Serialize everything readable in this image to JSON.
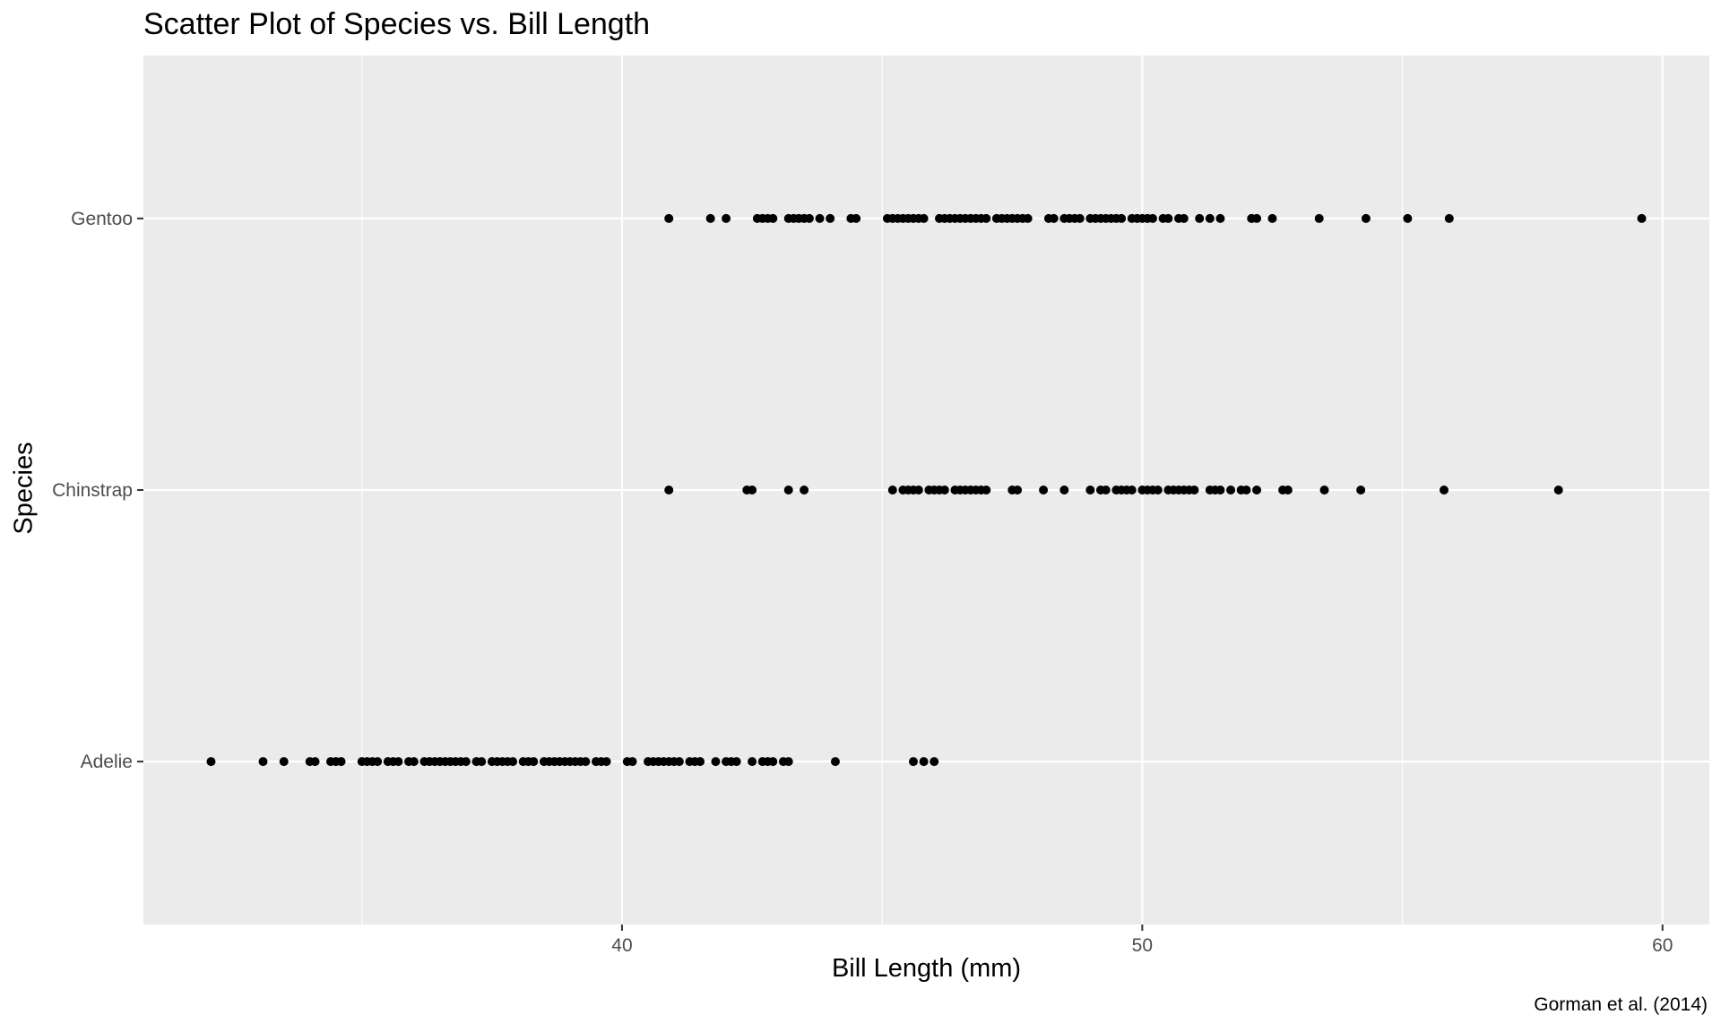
{
  "chart_data": {
    "type": "scatter",
    "title": "Scatter Plot of Species vs. Bill Length",
    "xlabel": "Bill Length (mm)",
    "ylabel": "Species",
    "caption": "Gorman et al. (2014)",
    "x_ticks": [
      40,
      50,
      60
    ],
    "xlim": [
      30.8,
      60.9
    ],
    "categories": [
      "Adelie",
      "Chinstrap",
      "Gentoo"
    ],
    "grid": true,
    "legend": "none",
    "colors": {
      "panel": "#ebebeb",
      "grid": "#ffffff",
      "point": "#000000",
      "tick_text": "#4d4d4d",
      "tick_mark": "#333333"
    },
    "series": [
      {
        "category": "Adelie",
        "x": [
          32.1,
          33.1,
          33.5,
          34.0,
          34.1,
          34.4,
          34.5,
          34.6,
          35.0,
          35.1,
          35.2,
          35.3,
          35.5,
          35.6,
          35.7,
          35.9,
          36.0,
          36.2,
          36.3,
          36.4,
          36.5,
          36.6,
          36.7,
          36.8,
          36.9,
          37.0,
          37.2,
          37.3,
          37.5,
          37.6,
          37.7,
          37.8,
          37.9,
          38.1,
          38.2,
          38.3,
          38.5,
          38.6,
          38.7,
          38.8,
          38.9,
          39.0,
          39.1,
          39.2,
          39.3,
          39.5,
          39.6,
          39.7,
          40.1,
          40.2,
          40.5,
          40.6,
          40.7,
          40.8,
          40.9,
          41.0,
          41.1,
          41.3,
          41.4,
          41.5,
          41.8,
          42.0,
          42.1,
          42.2,
          42.5,
          42.7,
          42.8,
          42.9,
          43.1,
          43.2,
          44.1,
          45.6,
          45.8,
          46.0
        ]
      },
      {
        "category": "Chinstrap",
        "x": [
          40.9,
          42.4,
          42.5,
          43.2,
          43.5,
          45.2,
          45.4,
          45.5,
          45.6,
          45.7,
          45.9,
          46.0,
          46.1,
          46.2,
          46.4,
          46.5,
          46.6,
          46.7,
          46.8,
          46.9,
          47.0,
          47.5,
          47.6,
          48.1,
          48.5,
          49.0,
          49.2,
          49.3,
          49.5,
          49.6,
          49.7,
          49.8,
          50.0,
          50.1,
          50.2,
          50.3,
          50.5,
          50.6,
          50.7,
          50.8,
          50.9,
          51.0,
          51.3,
          51.4,
          51.5,
          51.7,
          51.9,
          52.0,
          52.2,
          52.7,
          52.8,
          53.5,
          54.2,
          55.8,
          58.0
        ]
      },
      {
        "category": "Gentoo",
        "x": [
          40.9,
          41.7,
          42.0,
          42.6,
          42.7,
          42.8,
          42.9,
          43.2,
          43.3,
          43.4,
          43.5,
          43.6,
          43.8,
          44.0,
          44.4,
          44.5,
          45.1,
          45.2,
          45.3,
          45.4,
          45.5,
          45.6,
          45.7,
          45.8,
          46.1,
          46.2,
          46.3,
          46.4,
          46.5,
          46.6,
          46.7,
          46.8,
          46.9,
          47.0,
          47.2,
          47.3,
          47.4,
          47.5,
          47.6,
          47.7,
          47.8,
          48.2,
          48.3,
          48.5,
          48.6,
          48.7,
          48.8,
          49.0,
          49.1,
          49.2,
          49.3,
          49.4,
          49.5,
          49.6,
          49.8,
          49.9,
          50.0,
          50.1,
          50.2,
          50.4,
          50.5,
          50.7,
          50.8,
          51.1,
          51.3,
          51.5,
          52.1,
          52.2,
          52.5,
          53.4,
          54.3,
          55.1,
          55.9,
          59.6
        ]
      }
    ]
  }
}
